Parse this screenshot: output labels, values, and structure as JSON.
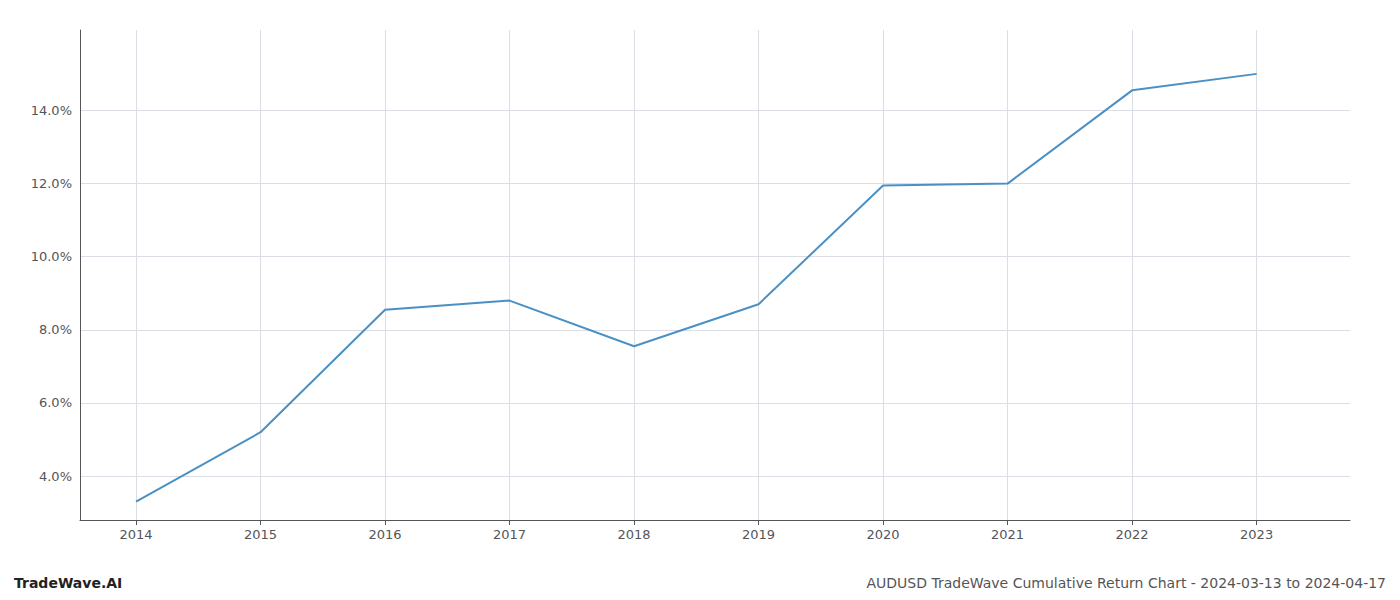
{
  "chart_data": {
    "type": "line",
    "x": [
      2014,
      2015,
      2016,
      2017,
      2018,
      2019,
      2020,
      2021,
      2022,
      2023
    ],
    "values": [
      3.3,
      5.2,
      8.55,
      8.8,
      7.55,
      8.7,
      11.95,
      12.0,
      14.55,
      15.0
    ],
    "color": "#4a90c4",
    "xlim": [
      2013.55,
      2023.75
    ],
    "xticks": [
      2014,
      2015,
      2016,
      2017,
      2018,
      2019,
      2020,
      2021,
      2022,
      2023
    ],
    "ylim": [
      2.8,
      16.2
    ],
    "yticks": [
      {
        "value": 4.0,
        "label": "4.0%"
      },
      {
        "value": 6.0,
        "label": "6.0%"
      },
      {
        "value": 8.0,
        "label": "8.0%"
      },
      {
        "value": 10.0,
        "label": "10.0%"
      },
      {
        "value": 12.0,
        "label": "12.0%"
      },
      {
        "value": 14.0,
        "label": "14.0%"
      }
    ],
    "grid": true,
    "annotations": [
      "TradeWave.AI",
      "AUDUSD TradeWave Cumulative Return Chart - 2024-03-13 to 2024-04-17"
    ]
  }
}
